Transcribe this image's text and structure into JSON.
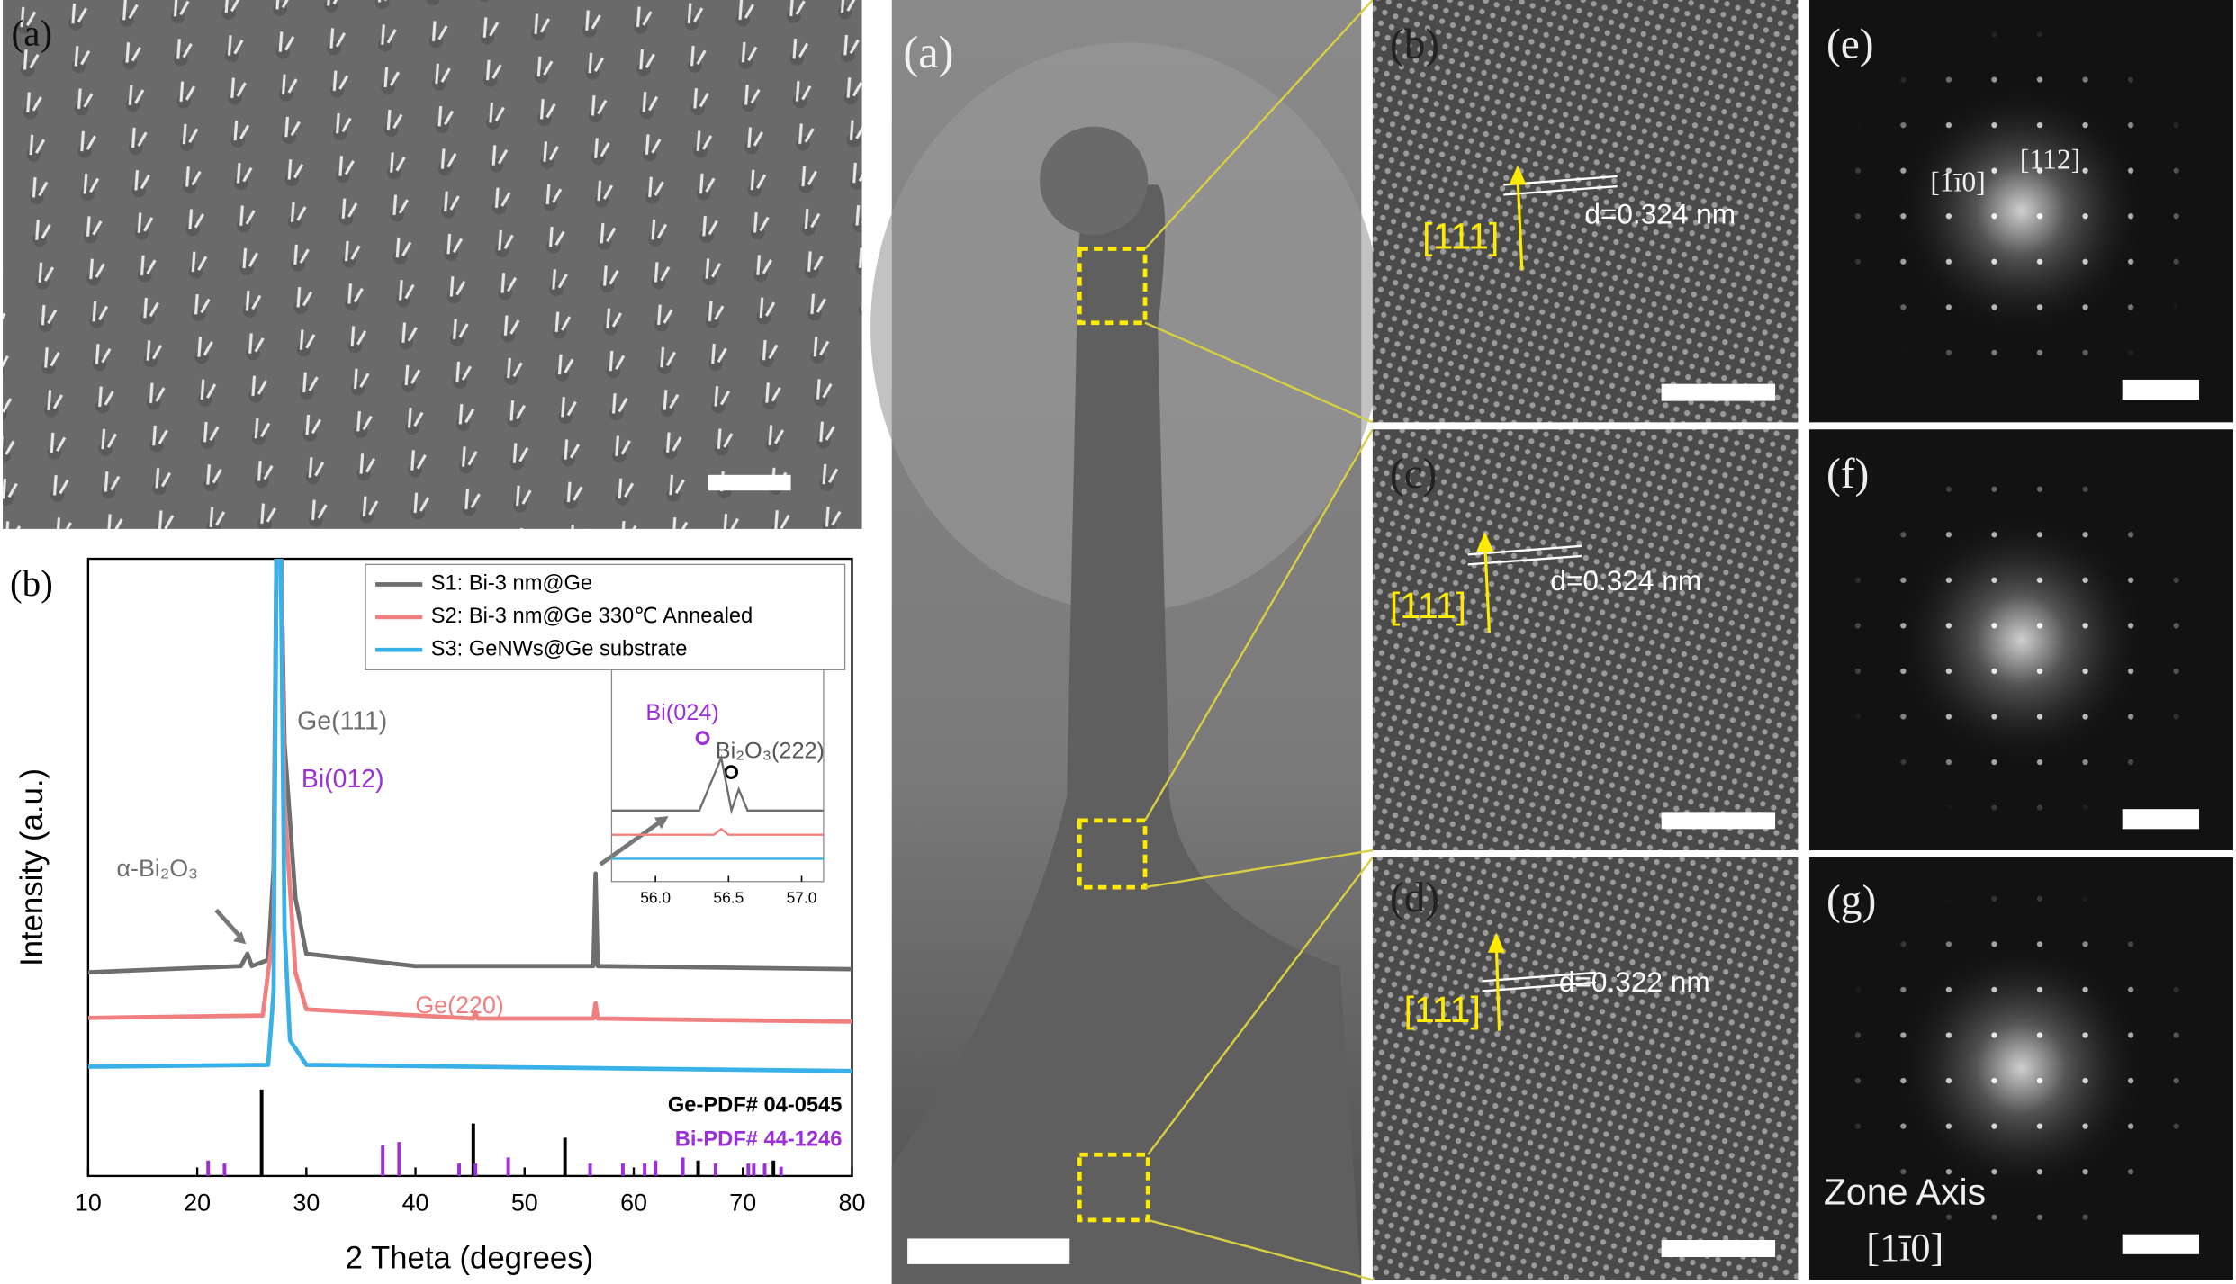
{
  "sem": {
    "label": "(a)"
  },
  "chart_data": {
    "type": "line",
    "panel_label": "(b)",
    "xlabel": "2 Theta (degrees)",
    "ylabel": "Intensity (a.u.)",
    "xlim": [
      10,
      80
    ],
    "xticks": [
      10,
      20,
      30,
      40,
      50,
      60,
      70,
      80
    ],
    "ylim": [
      0,
      100
    ],
    "legend": "upper right",
    "series": [
      {
        "name": "S1: Bi-3 nm@Ge",
        "color": "#6e6e6e",
        "x": [
          10,
          24,
          24.6,
          25,
          26.5,
          27,
          27.3,
          27.6,
          28,
          29,
          30,
          40,
          56.3,
          56.5,
          56.7,
          80
        ],
        "values": [
          33,
          34,
          36,
          34,
          35,
          50,
          110,
          110,
          70,
          45,
          36,
          34,
          34,
          49,
          34,
          33.5
        ]
      },
      {
        "name": "S2: Bi-3 nm@Ge 330℃ Annealed",
        "color": "#f08080",
        "x": [
          10,
          26,
          27,
          27.3,
          27.6,
          28,
          29,
          30,
          45.3,
          45.5,
          45.7,
          56.3,
          56.5,
          56.7,
          80
        ],
        "values": [
          25.6,
          26,
          40,
          110,
          110,
          60,
          33,
          27,
          25.5,
          26.5,
          25.5,
          25.5,
          28,
          25.5,
          25
        ]
      },
      {
        "name": "S3: GeNWs@Ge substrate",
        "color": "#3ab0e8",
        "x": [
          10,
          26.5,
          27,
          27.3,
          27.6,
          28,
          28.5,
          30,
          80
        ],
        "values": [
          17.7,
          18,
          30,
          110,
          110,
          40,
          22,
          18,
          17
        ]
      }
    ],
    "references": [
      {
        "name": "Ge-PDF# 04-0545",
        "color": "#000000",
        "x": [
          25.9,
          45.3,
          53.7,
          65.9,
          72.8
        ],
        "values": [
          14,
          8.5,
          6.2,
          2.5,
          2.5
        ]
      },
      {
        "name": "Bi-PDF# 44-1246",
        "color": "#9b30d9",
        "x": [
          21,
          22.5,
          37,
          38.5,
          44,
          45.5,
          48.5,
          56,
          59,
          61,
          62,
          64.5,
          67.5,
          70.5,
          71,
          72,
          73.5
        ],
        "values": [
          2.5,
          2,
          5,
          5.5,
          2,
          2,
          3,
          2,
          2,
          2,
          2.5,
          3,
          2,
          2,
          2,
          2,
          1.5
        ]
      }
    ],
    "annotations": [
      "Ge(111)",
      "Bi(012)",
      "α-Bi₂O₃",
      "Ge(220)",
      "Bi(024)",
      "Bi₂O₃(222)"
    ],
    "inset": {
      "xlim": [
        55.7,
        57.15
      ],
      "ylim": [
        0,
        15
      ],
      "xticks": [
        {
          "value": 56,
          "label": "56.0"
        },
        56.5,
        {
          "value": 57,
          "label": "57.0"
        }
      ],
      "series": [
        {
          "x": [
            55.7,
            56.3,
            56.45,
            56.52,
            56.57,
            56.63,
            57.15
          ],
          "values": [
            5,
            5,
            8.7,
            5,
            6.5,
            5,
            5
          ]
        },
        {
          "x": [
            55.7,
            56.4,
            56.45,
            56.5,
            57.15
          ],
          "values": [
            3.3,
            3.3,
            3.7,
            3.3,
            3.3
          ]
        },
        {
          "x": [
            55.7,
            57.15
          ],
          "values": [
            1.6,
            1.6
          ]
        }
      ]
    }
  },
  "tem": {
    "label": "(a)"
  },
  "hrtem": [
    {
      "label": "(b)",
      "direction": "[111]",
      "spacing": "d=0.324 nm"
    },
    {
      "label": "(c)",
      "direction": "[111]",
      "spacing": "d=0.324 nm"
    },
    {
      "label": "(d)",
      "direction": "[111]",
      "spacing": "d=0.322 nm"
    }
  ],
  "fft": [
    {
      "label": "(e)",
      "indices": [
        "[1ī0]",
        "[112]"
      ]
    },
    {
      "label": "(f)"
    },
    {
      "label": "(g)",
      "zone_axis": "Zone Axis",
      "zone": "[1ī0]"
    }
  ]
}
